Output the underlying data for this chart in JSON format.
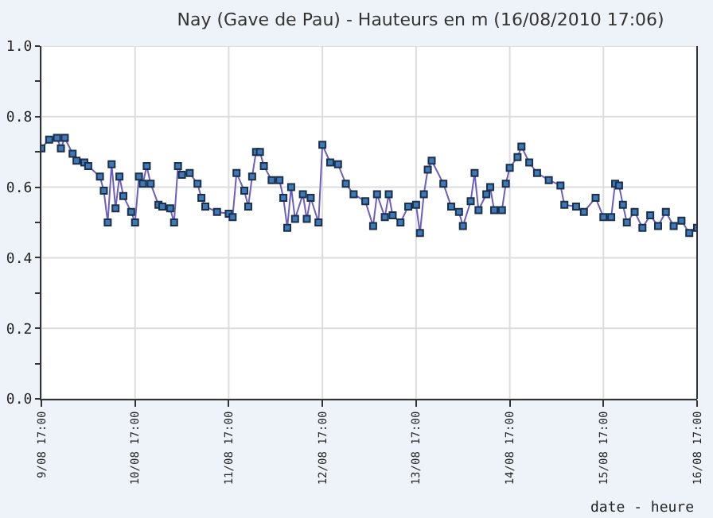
{
  "chart_data": {
    "type": "line",
    "title": "Nay (Gave de Pau) - Hauteurs en m (16/08/2010 17:06)",
    "xlabel": "date - heure",
    "x": [
      "2010-08-09T17:00",
      "2010-08-09T19:00",
      "2010-08-09T21:00",
      "2010-08-09T22:00",
      "2010-08-09T23:00",
      "2010-08-10T01:00",
      "2010-08-10T02:00",
      "2010-08-10T04:00",
      "2010-08-10T05:00",
      "2010-08-10T08:00",
      "2010-08-10T09:00",
      "2010-08-10T10:00",
      "2010-08-10T11:00",
      "2010-08-10T12:00",
      "2010-08-10T13:00",
      "2010-08-10T14:00",
      "2010-08-10T16:00",
      "2010-08-10T17:00",
      "2010-08-10T18:00",
      "2010-08-10T19:00",
      "2010-08-10T20:00",
      "2010-08-10T21:00",
      "2010-08-10T23:00",
      "2010-08-11T00:00",
      "2010-08-11T02:00",
      "2010-08-11T03:00",
      "2010-08-11T04:00",
      "2010-08-11T05:00",
      "2010-08-11T07:00",
      "2010-08-11T09:00",
      "2010-08-11T10:00",
      "2010-08-11T11:00",
      "2010-08-11T14:00",
      "2010-08-11T17:00",
      "2010-08-11T18:00",
      "2010-08-11T19:00",
      "2010-08-11T21:00",
      "2010-08-11T22:00",
      "2010-08-11T23:00",
      "2010-08-12T00:00",
      "2010-08-12T01:00",
      "2010-08-12T02:00",
      "2010-08-12T04:00",
      "2010-08-12T06:00",
      "2010-08-12T07:00",
      "2010-08-12T08:00",
      "2010-08-12T09:00",
      "2010-08-12T10:00",
      "2010-08-12T12:00",
      "2010-08-12T13:00",
      "2010-08-12T14:00",
      "2010-08-12T16:00",
      "2010-08-12T17:00",
      "2010-08-12T19:00",
      "2010-08-12T21:00",
      "2010-08-12T23:00",
      "2010-08-13T01:00",
      "2010-08-13T04:00",
      "2010-08-13T06:00",
      "2010-08-13T07:00",
      "2010-08-13T09:00",
      "2010-08-13T10:00",
      "2010-08-13T11:00",
      "2010-08-13T13:00",
      "2010-08-13T15:00",
      "2010-08-13T17:00",
      "2010-08-13T18:00",
      "2010-08-13T19:00",
      "2010-08-13T20:00",
      "2010-08-13T21:00",
      "2010-08-14T00:00",
      "2010-08-14T02:00",
      "2010-08-14T04:00",
      "2010-08-14T05:00",
      "2010-08-14T07:00",
      "2010-08-14T08:00",
      "2010-08-14T09:00",
      "2010-08-14T11:00",
      "2010-08-14T12:00",
      "2010-08-14T13:00",
      "2010-08-14T15:00",
      "2010-08-14T16:00",
      "2010-08-14T17:00",
      "2010-08-14T19:00",
      "2010-08-14T20:00",
      "2010-08-14T22:00",
      "2010-08-15T00:00",
      "2010-08-15T03:00",
      "2010-08-15T06:00",
      "2010-08-15T07:00",
      "2010-08-15T10:00",
      "2010-08-15T12:00",
      "2010-08-15T15:00",
      "2010-08-15T17:00",
      "2010-08-15T19:00",
      "2010-08-15T20:00",
      "2010-08-15T21:00",
      "2010-08-15T22:00",
      "2010-08-15T23:00",
      "2010-08-16T01:00",
      "2010-08-16T03:00",
      "2010-08-16T05:00",
      "2010-08-16T07:00",
      "2010-08-16T09:00",
      "2010-08-16T11:00",
      "2010-08-16T13:00",
      "2010-08-16T15:00",
      "2010-08-16T17:00"
    ],
    "series": [
      {
        "color": "#3f7ab8",
        "values": [
          0.71,
          0.735,
          0.74,
          0.71,
          0.74,
          0.695,
          0.675,
          0.67,
          0.66,
          0.63,
          0.59,
          0.5,
          0.665,
          0.54,
          0.63,
          0.575,
          0.53,
          0.5,
          0.63,
          0.61,
          0.66,
          0.61,
          0.55,
          0.545,
          0.54,
          0.5,
          0.66,
          0.635,
          0.64,
          0.61,
          0.57,
          0.545,
          0.53,
          0.525,
          0.515,
          0.64,
          0.59,
          0.545,
          0.63,
          0.7,
          0.7,
          0.66,
          0.62,
          0.62,
          0.57,
          0.485,
          0.6,
          0.51,
          0.58,
          0.51,
          0.57,
          0.5,
          0.72,
          0.67,
          0.665,
          0.61,
          0.58,
          0.56,
          0.49,
          0.58,
          0.515,
          0.58,
          0.52,
          0.5,
          0.545,
          0.55,
          0.47,
          0.58,
          0.65,
          0.675,
          0.61,
          0.545,
          0.53,
          0.49,
          0.56,
          0.64,
          0.535,
          0.58,
          0.6,
          0.535,
          0.535,
          0.61,
          0.655,
          0.685,
          0.715,
          0.67,
          0.64,
          0.62,
          0.605,
          0.55,
          0.545,
          0.53,
          0.57,
          0.515,
          0.515,
          0.61,
          0.605,
          0.55,
          0.5,
          0.53,
          0.485,
          0.52,
          0.49,
          0.53,
          0.49,
          0.505,
          0.47,
          0.485
        ]
      }
    ],
    "xlim": [
      "2010-08-09T17:00",
      "2010-08-16T17:00"
    ],
    "xticks": [
      {
        "value": "2010-08-09T17:00",
        "label": "9/08 17:00"
      },
      {
        "value": "2010-08-10T17:00",
        "label": "10/08 17:00"
      },
      {
        "value": "2010-08-11T17:00",
        "label": "11/08 17:00"
      },
      {
        "value": "2010-08-12T17:00",
        "label": "12/08 17:00"
      },
      {
        "value": "2010-08-13T17:00",
        "label": "13/08 17:00"
      },
      {
        "value": "2010-08-14T17:00",
        "label": "14/08 17:00"
      },
      {
        "value": "2010-08-15T17:00",
        "label": "15/08 17:00"
      },
      {
        "value": "2010-08-16T17:00",
        "label": "16/08 17:00"
      }
    ],
    "ylim": [
      0,
      1
    ],
    "yticks": [
      {
        "value": 0,
        "label": "0.0"
      },
      {
        "value": 0.1,
        "label": null
      },
      {
        "value": 0.2,
        "label": "0.2"
      },
      {
        "value": 0.3,
        "label": null
      },
      {
        "value": 0.4,
        "label": "0.4"
      },
      {
        "value": 0.5,
        "label": null
      },
      {
        "value": 0.6,
        "label": "0.6"
      },
      {
        "value": 0.7,
        "label": null
      },
      {
        "value": 0.8,
        "label": "0.8"
      },
      {
        "value": 0.9,
        "label": null
      },
      {
        "value": 1,
        "label": "1.0"
      }
    ],
    "grid": true,
    "marker": "square",
    "line_style": "solid"
  }
}
